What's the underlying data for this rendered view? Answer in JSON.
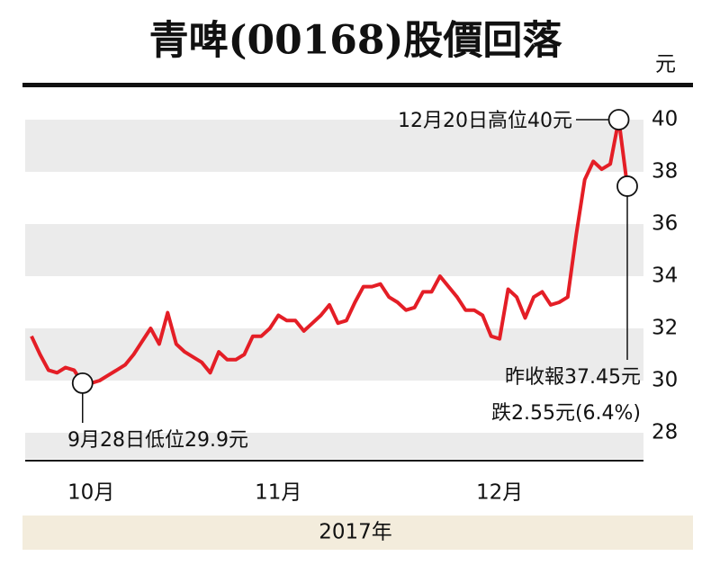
{
  "chart_data": {
    "type": "line",
    "title": "青啤(00168)股價回落",
    "y_unit": "元",
    "xlabel": "2017年",
    "categories": [
      null,
      null,
      null,
      null,
      null,
      null,
      null,
      "10月",
      null,
      null,
      null,
      null,
      null,
      null,
      null,
      null,
      null,
      null,
      null,
      null,
      null,
      null,
      null,
      null,
      null,
      null,
      null,
      null,
      null,
      "11月",
      null,
      null,
      null,
      null,
      null,
      null,
      null,
      null,
      null,
      null,
      null,
      null,
      null,
      null,
      null,
      null,
      null,
      null,
      null,
      null,
      null,
      null,
      null,
      null,
      null,
      "12月",
      null,
      null,
      null,
      null,
      null,
      null,
      null,
      null,
      null,
      null,
      null,
      null,
      null,
      null,
      null
    ],
    "series": [
      {
        "color": "#e41e26",
        "values": [
          31.7,
          31.0,
          30.4,
          30.3,
          30.5,
          30.4,
          29.9,
          29.9,
          30.0,
          30.2,
          30.4,
          30.6,
          31.0,
          31.5,
          32.0,
          31.4,
          32.6,
          31.4,
          31.1,
          30.9,
          30.7,
          30.3,
          31.1,
          30.8,
          30.8,
          31.0,
          31.7,
          31.7,
          32.0,
          32.5,
          32.3,
          32.3,
          31.9,
          32.2,
          32.5,
          32.9,
          32.2,
          32.3,
          33.0,
          33.6,
          33.6,
          33.7,
          33.2,
          33.0,
          32.7,
          32.8,
          33.4,
          33.4,
          34.0,
          33.6,
          33.2,
          32.7,
          32.7,
          32.5,
          31.7,
          31.6,
          33.5,
          33.2,
          32.4,
          33.2,
          33.4,
          32.9,
          33.0,
          33.2,
          35.6,
          37.7,
          38.4,
          38.1,
          38.3,
          40.0,
          37.45
        ]
      }
    ],
    "ylim": [
      27,
      41
    ],
    "yticks": [
      40,
      38,
      36,
      34,
      32,
      30,
      28
    ],
    "grid_bands": "#ebebeb",
    "annotations": [
      "12月20日高位40元",
      "9月28日低位29.9元",
      "昨收報37.45元",
      "跌2.55元(6.4%)"
    ]
  }
}
